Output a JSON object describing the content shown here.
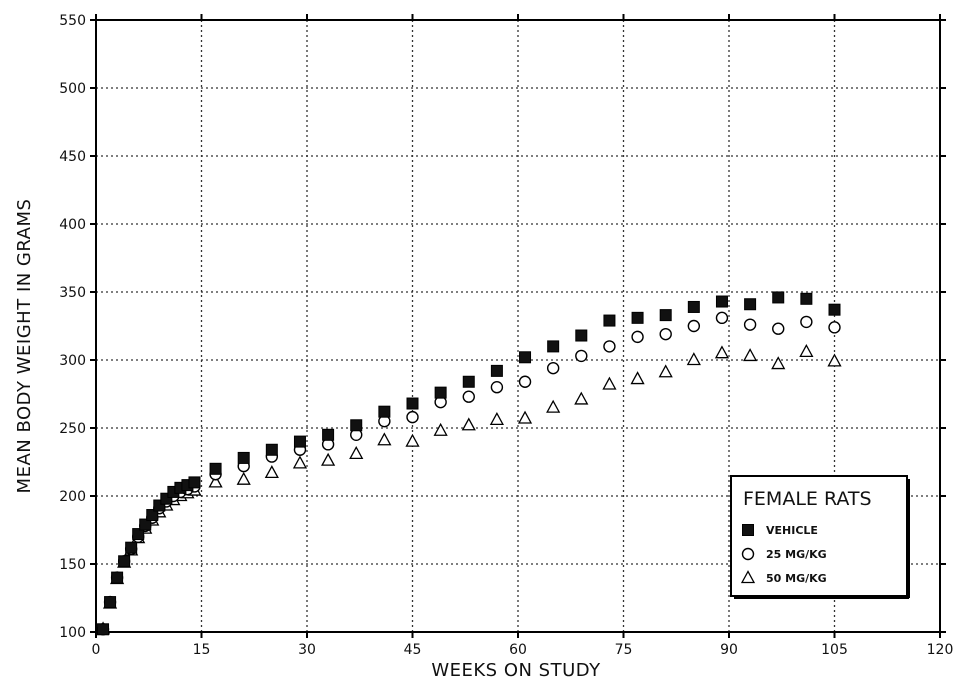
{
  "chart_data": {
    "type": "scatter",
    "title": "",
    "xlabel": "WEEKS ON STUDY",
    "ylabel": "MEAN BODY WEIGHT IN GRAMS",
    "xlim": [
      0,
      120
    ],
    "ylim": [
      100,
      550
    ],
    "xticks": [
      0,
      15,
      30,
      45,
      60,
      75,
      90,
      105,
      120
    ],
    "yticks": [
      100,
      150,
      200,
      250,
      300,
      350,
      400,
      450,
      500,
      550
    ],
    "grid": true,
    "legend": {
      "title": "FEMALE RATS",
      "position": "bottom-right"
    },
    "series": [
      {
        "name": "VEHICLE",
        "marker": "filled-square",
        "points": [
          [
            1,
            102
          ],
          [
            2,
            122
          ],
          [
            3,
            140
          ],
          [
            4,
            152
          ],
          [
            5,
            162
          ],
          [
            6,
            172
          ],
          [
            7,
            179
          ],
          [
            8,
            186
          ],
          [
            9,
            193
          ],
          [
            10,
            198
          ],
          [
            11,
            203
          ],
          [
            12,
            206
          ],
          [
            13,
            208
          ],
          [
            14,
            210
          ],
          [
            17,
            220
          ],
          [
            21,
            228
          ],
          [
            25,
            234
          ],
          [
            29,
            240
          ],
          [
            33,
            245
          ],
          [
            37,
            252
          ],
          [
            41,
            262
          ],
          [
            45,
            268
          ],
          [
            49,
            276
          ],
          [
            53,
            284
          ],
          [
            57,
            292
          ],
          [
            61,
            302
          ],
          [
            65,
            310
          ],
          [
            69,
            318
          ],
          [
            73,
            329
          ],
          [
            77,
            331
          ],
          [
            81,
            333
          ],
          [
            85,
            339
          ],
          [
            89,
            343
          ],
          [
            93,
            341
          ],
          [
            97,
            346
          ],
          [
            101,
            345
          ],
          [
            105,
            337
          ]
        ]
      },
      {
        "name": "25 MG/KG",
        "marker": "open-circle",
        "points": [
          [
            1,
            102
          ],
          [
            2,
            122
          ],
          [
            3,
            140
          ],
          [
            4,
            152
          ],
          [
            5,
            161
          ],
          [
            6,
            170
          ],
          [
            7,
            178
          ],
          [
            8,
            184
          ],
          [
            9,
            191
          ],
          [
            10,
            196
          ],
          [
            11,
            200
          ],
          [
            12,
            203
          ],
          [
            13,
            205
          ],
          [
            14,
            207
          ],
          [
            17,
            216
          ],
          [
            21,
            222
          ],
          [
            25,
            229
          ],
          [
            29,
            234
          ],
          [
            33,
            238
          ],
          [
            37,
            245
          ],
          [
            41,
            255
          ],
          [
            45,
            258
          ],
          [
            49,
            269
          ],
          [
            53,
            273
          ],
          [
            57,
            280
          ],
          [
            61,
            284
          ],
          [
            65,
            294
          ],
          [
            69,
            303
          ],
          [
            73,
            310
          ],
          [
            77,
            317
          ],
          [
            81,
            319
          ],
          [
            85,
            325
          ],
          [
            89,
            331
          ],
          [
            93,
            326
          ],
          [
            97,
            323
          ],
          [
            101,
            328
          ],
          [
            105,
            324
          ]
        ]
      },
      {
        "name": "50 MG/KG",
        "marker": "open-triangle",
        "points": [
          [
            1,
            102
          ],
          [
            2,
            121
          ],
          [
            3,
            139
          ],
          [
            4,
            151
          ],
          [
            5,
            160
          ],
          [
            6,
            169
          ],
          [
            7,
            176
          ],
          [
            8,
            182
          ],
          [
            9,
            188
          ],
          [
            10,
            193
          ],
          [
            11,
            197
          ],
          [
            12,
            200
          ],
          [
            13,
            202
          ],
          [
            14,
            204
          ],
          [
            17,
            210
          ],
          [
            21,
            212
          ],
          [
            25,
            217
          ],
          [
            29,
            224
          ],
          [
            33,
            226
          ],
          [
            37,
            231
          ],
          [
            41,
            241
          ],
          [
            45,
            240
          ],
          [
            49,
            248
          ],
          [
            53,
            252
          ],
          [
            57,
            256
          ],
          [
            61,
            257
          ],
          [
            65,
            265
          ],
          [
            69,
            271
          ],
          [
            73,
            282
          ],
          [
            77,
            286
          ],
          [
            81,
            291
          ],
          [
            85,
            300
          ],
          [
            89,
            305
          ],
          [
            93,
            303
          ],
          [
            97,
            297
          ],
          [
            101,
            306
          ],
          [
            105,
            299
          ]
        ]
      }
    ]
  }
}
